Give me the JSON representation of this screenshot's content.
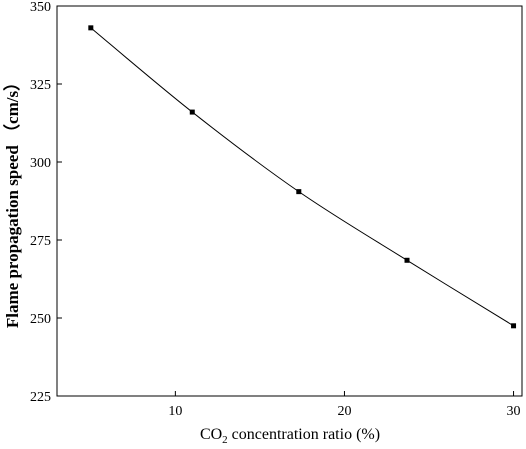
{
  "chart_data": {
    "type": "line",
    "xlabel_main": "CO",
    "xlabel_sub": "2",
    "xlabel_rest": " concentration ratio (%)",
    "ylabel": "Flame propagation speed （cm/s）",
    "xlim": [
      3,
      30.5
    ],
    "ylim": [
      225,
      350
    ],
    "xticks": [
      10,
      20,
      30
    ],
    "yticks": [
      225,
      250,
      275,
      300,
      325,
      350
    ],
    "grid": false,
    "series": [
      {
        "x": [
          5,
          11,
          17.3,
          23.7,
          30
        ],
        "y": [
          343,
          316,
          290.5,
          268.5,
          247.5
        ]
      }
    ],
    "color": "#000000"
  }
}
